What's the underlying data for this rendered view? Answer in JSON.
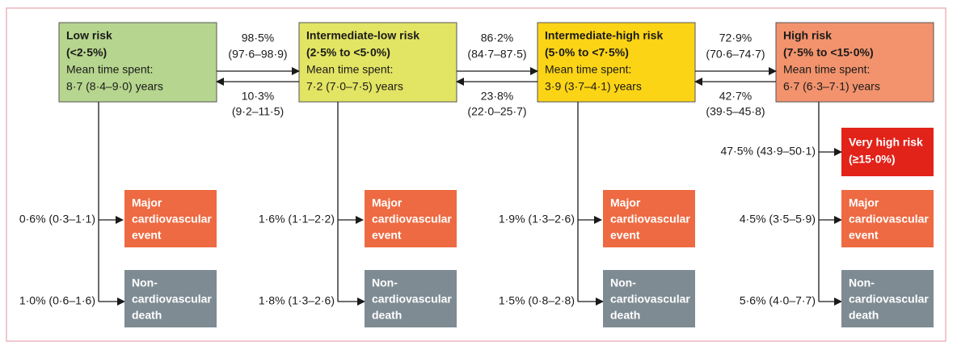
{
  "states": [
    {
      "name": "Low risk",
      "range": "(<2·5%)",
      "mean_label": "Mean time spent:",
      "mean_value": "8·7 (8·4–9·0) years",
      "mace_rate": "0·6% (0·3–1·1)",
      "death_rate": "1·0% (0·6–1·6)"
    },
    {
      "name": "Intermediate-low risk",
      "range": "(2·5% to <5·0%)",
      "mean_label": "Mean time spent:",
      "mean_value": "7·2 (7·0–7·5) years",
      "mace_rate": "1·6% (1·1–2·2)",
      "death_rate": "1·8% (1·3–2·6)"
    },
    {
      "name": "Intermediate-high risk",
      "range": "(5·0% to <7·5%)",
      "mean_label": "Mean time spent:",
      "mean_value": "3·9 (3·7–4·1) years",
      "mace_rate": "1·9% (1·3–2·6)",
      "death_rate": "1·5% (0·8–2·8)"
    },
    {
      "name": "High risk",
      "range": "(7·5% to <15·0%)",
      "mean_label": "Mean time spent:",
      "mean_value": "6·7 (6·3–7·1) years",
      "mace_rate": "4·5% (3·5–5·9)",
      "death_rate": "5·6% (4·0–7·7)"
    }
  ],
  "forward": [
    {
      "rate": "98·5%",
      "ci": "(97·6–98·9)"
    },
    {
      "rate": "86·2%",
      "ci": "(84·7–87·5)"
    },
    {
      "rate": "72·9%",
      "ci": "(70·6–74·7)"
    }
  ],
  "backward": [
    {
      "rate": "10·3%",
      "ci": "(9·2–11·5)"
    },
    {
      "rate": "23·8%",
      "ci": "(22·0–25·7)"
    },
    {
      "rate": "42·7%",
      "ci": "(39·5–45·8)"
    }
  ],
  "very_high": {
    "name": "Very high risk",
    "range": "(≥15·0%)",
    "rate": "47·5% (43·9–50·1)"
  },
  "outcome_labels": {
    "mace": [
      "Major",
      "cardiovascular",
      "event"
    ],
    "death": [
      "Non-",
      "cardiovascular",
      "death"
    ]
  }
}
